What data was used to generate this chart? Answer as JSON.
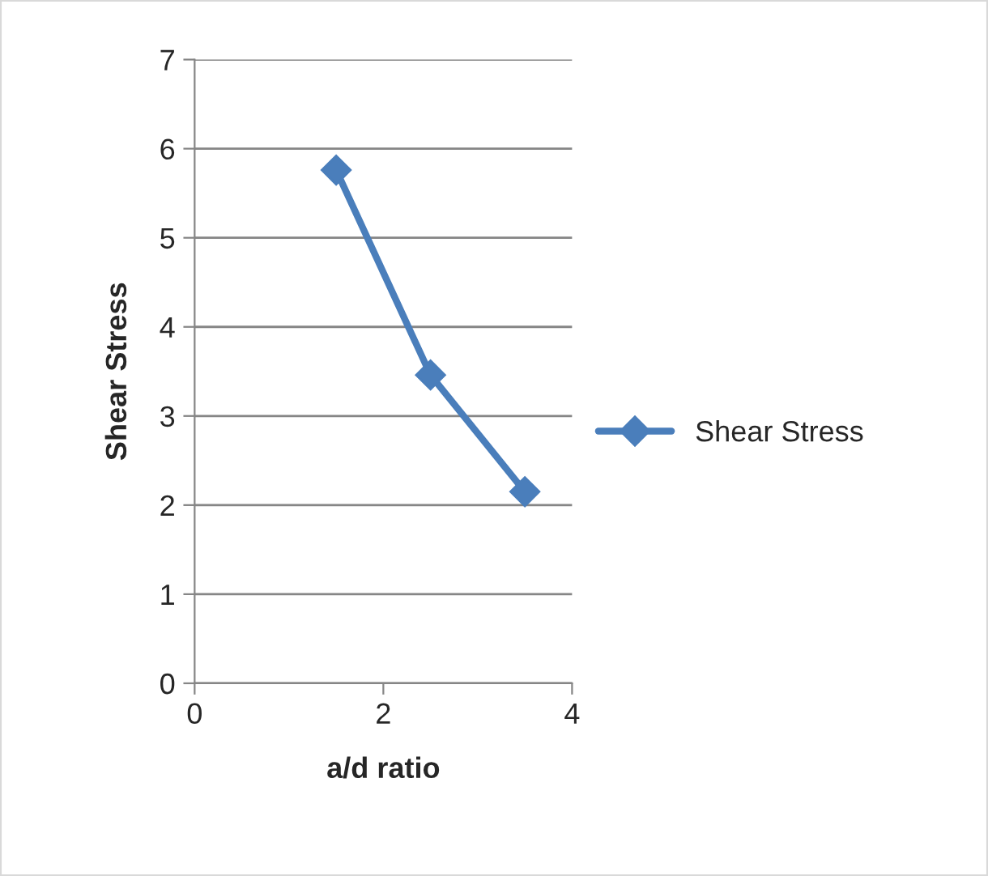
{
  "chart_data": {
    "type": "line",
    "xlabel": "a/d ratio",
    "ylabel": "Shear Stress",
    "x": [
      1.5,
      2.5,
      3.5
    ],
    "series": [
      {
        "name": "Shear Stress",
        "color": "#4a7ebb",
        "values": [
          5.76,
          3.46,
          2.15
        ]
      }
    ],
    "xlim": [
      0,
      4
    ],
    "xticks": [
      0,
      2,
      4
    ],
    "ylim": [
      0,
      7
    ],
    "yticks": [
      0,
      1,
      2,
      3,
      4,
      5,
      6,
      7
    ],
    "grid": "y",
    "legend": "right",
    "marker": "diamond",
    "line_style": "solid"
  }
}
